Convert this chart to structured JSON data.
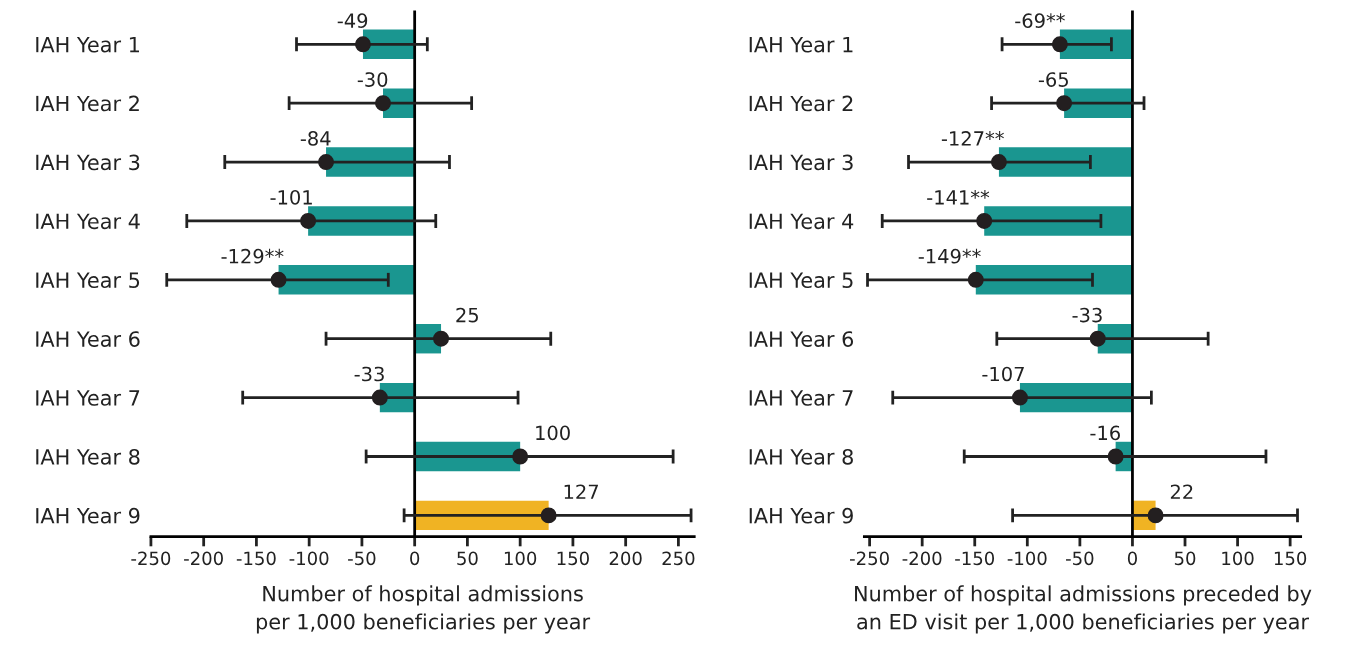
{
  "chart_data": [
    {
      "type": "bar",
      "orientation": "horizontal",
      "categories": [
        "IAH Year 1",
        "IAH Year 2",
        "IAH Year 3",
        "IAH Year 4",
        "IAH Year 5",
        "IAH Year 6",
        "IAH Year 7",
        "IAH Year 8",
        "IAH Year 9"
      ],
      "series": [
        {
          "values": [
            -49,
            -30,
            -84,
            -101,
            -129,
            25,
            -33,
            100,
            127
          ],
          "colors": [
            "#1a9690",
            "#1a9690",
            "#1a9690",
            "#1a9690",
            "#1a9690",
            "#1a9690",
            "#1a9690",
            "#1a9690",
            "#f0b323"
          ],
          "errors": [
            [
              -112,
              12
            ],
            [
              -119,
              54
            ],
            [
              -180,
              33
            ],
            [
              -216,
              20
            ],
            [
              -235,
              -25
            ],
            [
              -84,
              129
            ],
            [
              -163,
              98
            ],
            [
              -46,
              245
            ],
            [
              -10,
              262
            ]
          ],
          "value_labels": [
            "-49",
            "-30",
            "-84",
            "-101",
            "-129**",
            "25",
            "-33",
            "100",
            "127"
          ]
        },
        {
          "type": "scatter",
          "values": [
            -49,
            -30,
            -84,
            -101,
            -129,
            25,
            -33,
            100,
            127
          ],
          "color": "#231f20",
          "marker": "circle"
        }
      ],
      "xlabel": "Number of hospital admissions\nper 1,000 beneficiaries per year",
      "xlim": [
        -250,
        265
      ],
      "xticks": [
        -250,
        -200,
        -150,
        -100,
        -50,
        0,
        50,
        100,
        150,
        200,
        250
      ]
    },
    {
      "type": "bar",
      "orientation": "horizontal",
      "categories": [
        "IAH Year 1",
        "IAH Year 2",
        "IAH Year 3",
        "IAH Year 4",
        "IAH Year 5",
        "IAH Year 6",
        "IAH Year 7",
        "IAH Year 8",
        "IAH Year 9"
      ],
      "series": [
        {
          "values": [
            -69,
            -65,
            -127,
            -141,
            -149,
            -33,
            -107,
            -16,
            22
          ],
          "colors": [
            "#1a9690",
            "#1a9690",
            "#1a9690",
            "#1a9690",
            "#1a9690",
            "#1a9690",
            "#1a9690",
            "#1a9690",
            "#f0b323"
          ],
          "errors": [
            [
              -124,
              -20
            ],
            [
              -134,
              11
            ],
            [
              -213,
              -40
            ],
            [
              -238,
              -30
            ],
            [
              -252,
              -38
            ],
            [
              -129,
              72
            ],
            [
              -228,
              18
            ],
            [
              -160,
              127
            ],
            [
              -114,
              157
            ]
          ],
          "value_labels": [
            "-69**",
            "-65",
            "-127**",
            "-141**",
            "-149**",
            "-33",
            "-107",
            "-16",
            "22"
          ]
        },
        {
          "type": "scatter",
          "values": [
            -69,
            -65,
            -127,
            -141,
            -149,
            -33,
            -107,
            -16,
            22
          ],
          "color": "#231f20",
          "marker": "circle"
        }
      ],
      "xlabel": "Number of hospital admissions preceded by\nan ED visit per 1,000 beneficiaries per year",
      "xlim": [
        -255,
        160
      ],
      "xticks": [
        -250,
        -200,
        -150,
        -100,
        -50,
        0,
        50,
        100,
        150
      ]
    }
  ]
}
